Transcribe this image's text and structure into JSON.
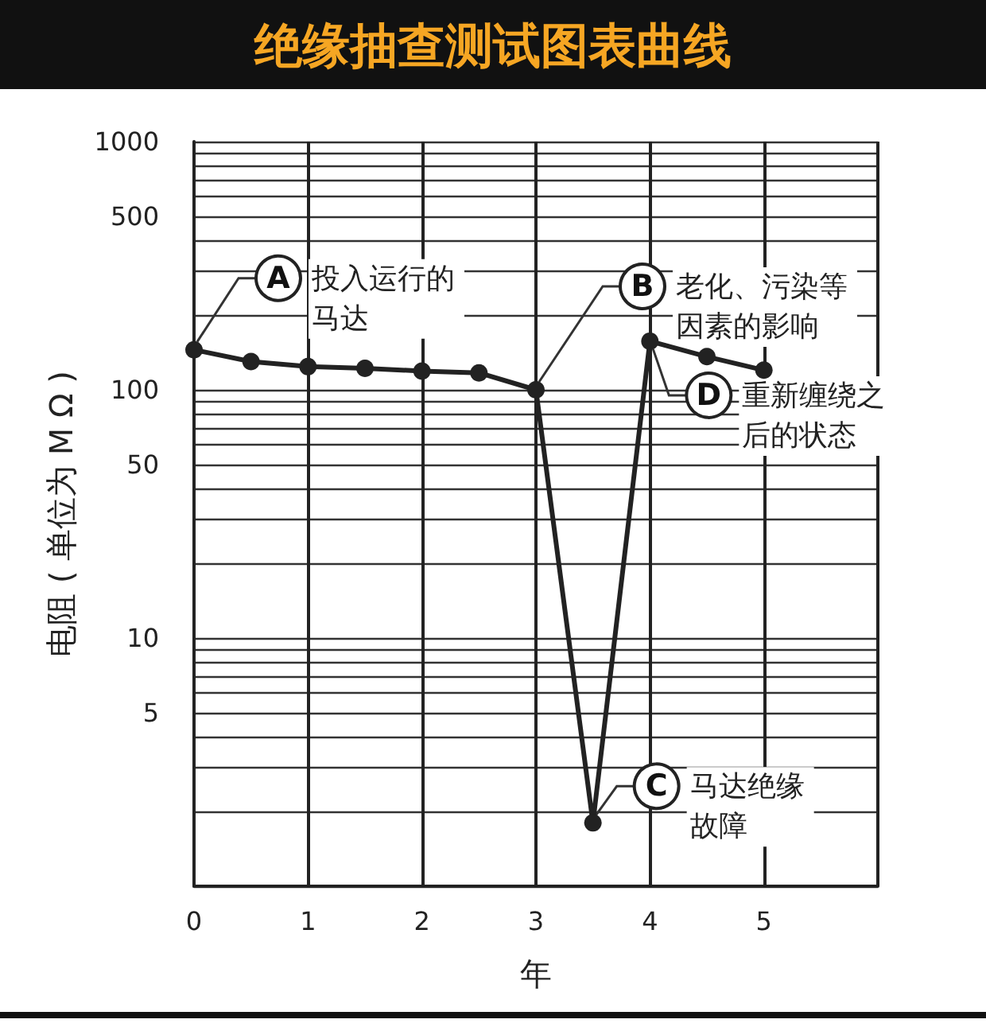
{
  "chart_data": {
    "type": "line",
    "title": "绝缘抽查测试图表曲线",
    "xlabel": "年",
    "ylabel": "电阻 ( 单位为 M Ω )",
    "x": [
      0,
      0.5,
      1,
      1.5,
      2,
      2.5,
      3,
      3.5,
      4,
      4.5,
      5
    ],
    "series": [
      {
        "color": "#222222",
        "values": [
          145,
          130,
          124,
          122,
          119,
          117,
          100,
          1.8,
          157,
          136,
          120
        ]
      }
    ],
    "log": true,
    "grid": true,
    "marker": "circle",
    "line_style": "solid",
    "xlim": [
      0,
      6
    ],
    "xticks": [
      0,
      1,
      2,
      3,
      4,
      5,
      {
        "value": 6,
        "label": null
      }
    ],
    "ylim": [
      1,
      1000
    ],
    "yticks": [
      {
        "value": 1,
        "label": null
      },
      {
        "value": 2,
        "label": null
      },
      {
        "value": 3,
        "label": null
      },
      {
        "value": 4,
        "label": null
      },
      5,
      {
        "value": 6,
        "label": null
      },
      {
        "value": 7,
        "label": null
      },
      {
        "value": 8,
        "label": null
      },
      {
        "value": 9,
        "label": null
      },
      10,
      {
        "value": 20,
        "label": null
      },
      {
        "value": 30,
        "label": null
      },
      {
        "value": 40,
        "label": null
      },
      50,
      {
        "value": 60,
        "label": null
      },
      {
        "value": 70,
        "label": null
      },
      {
        "value": 80,
        "label": null
      },
      {
        "value": 90,
        "label": null
      },
      100,
      {
        "value": 200,
        "label": null
      },
      {
        "value": 300,
        "label": null
      },
      {
        "value": 400,
        "label": null
      },
      500,
      {
        "value": 600,
        "label": null
      },
      {
        "value": 700,
        "label": null
      },
      {
        "value": 800,
        "label": null
      },
      {
        "value": 900,
        "label": null
      },
      1000
    ],
    "annotations": [
      {
        "text": "A",
        "x": 0,
        "y": 145
      },
      "投入运行的马达",
      {
        "text": "B",
        "x": 3,
        "y": 100
      },
      "老化、污染等因素的影响",
      {
        "text": "C",
        "x": 3.5,
        "y": 1.8
      },
      "马达绝缘故障",
      {
        "text": "D",
        "x": 4,
        "y": 157
      },
      "重新缠绕之后的状态"
    ]
  }
}
